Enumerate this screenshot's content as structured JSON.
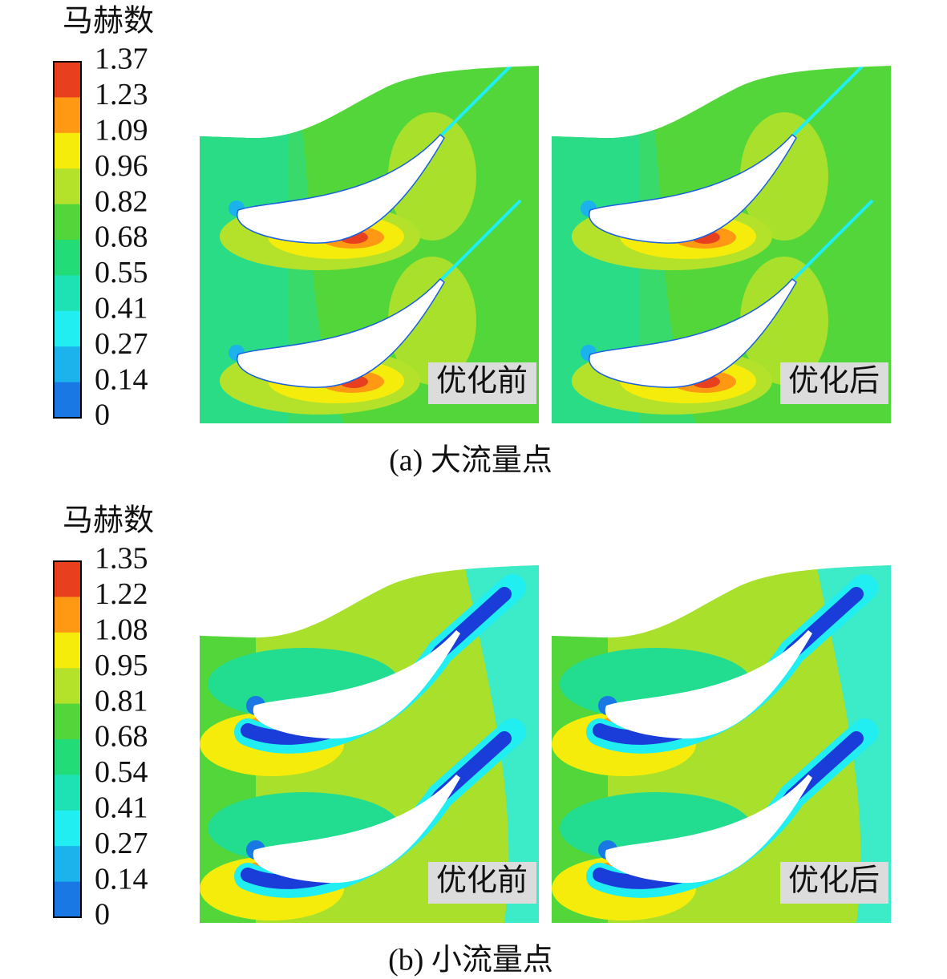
{
  "panels": [
    {
      "legend": {
        "title": "马赫数",
        "ticks": [
          "1.37",
          "1.23",
          "1.09",
          "0.96",
          "0.82",
          "0.68",
          "0.55",
          "0.41",
          "0.27",
          "0.14",
          "0"
        ]
      },
      "plots": [
        {
          "label": "优化前"
        },
        {
          "label": "优化后"
        }
      ],
      "caption": "(a) 大流量点"
    },
    {
      "legend": {
        "title": "马赫数",
        "ticks": [
          "1.35",
          "1.22",
          "1.08",
          "0.95",
          "0.81",
          "0.68",
          "0.54",
          "0.41",
          "0.27",
          "0.14",
          "0"
        ]
      },
      "plots": [
        {
          "label": "优化前"
        },
        {
          "label": "优化后"
        }
      ],
      "caption": "(b) 小流量点"
    }
  ]
}
